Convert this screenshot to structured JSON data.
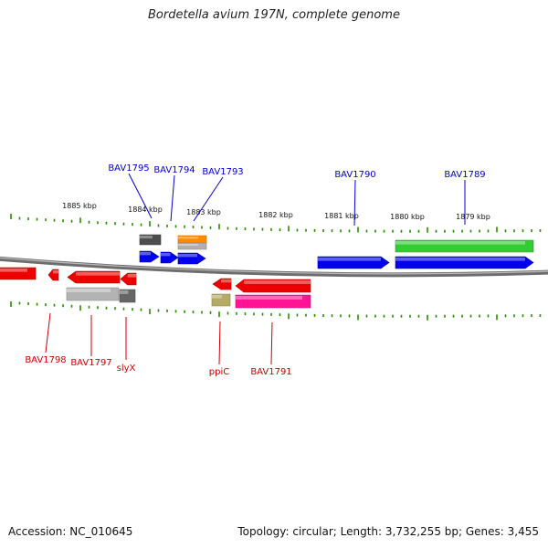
{
  "title": "Bordetella avium 197N, complete genome",
  "footer": {
    "accession": "Accession: NC_010645",
    "summary": "Topology: circular; Length: 3,732,255 bp; Genes: 3,455"
  },
  "scale_labels": [
    "1885 kbp",
    "1884 kbp",
    "1883 kbp",
    "1882 kbp",
    "1881 kbp",
    "1880 kbp",
    "1879 kbp"
  ],
  "colors": {
    "plus_label": "#0000cc",
    "minus_label": "#cc0000",
    "tick": "#2e8b00",
    "backbone": "#808080"
  },
  "features": [
    {
      "color": "#4d4d4d"
    },
    {
      "color": "#0000ee"
    },
    {
      "color": "#0000ee"
    },
    {
      "color": "#0000ee"
    },
    {
      "color": "#ff8c00"
    },
    {
      "color": "#b0b0b0"
    },
    {
      "color": "#0000ee"
    },
    {
      "color": "#0000ee"
    },
    {
      "color": "#33cc33"
    },
    {
      "color": "#ee0000"
    },
    {
      "color": "#ee0000"
    },
    {
      "color": "#ee0000"
    },
    {
      "color": "#ee0000"
    },
    {
      "color": "#b3b3b3"
    },
    {
      "color": "#666666"
    },
    {
      "color": "#ee0000"
    },
    {
      "color": "#ee0000"
    },
    {
      "color": "#b5aa66"
    },
    {
      "color": "#ff1493"
    }
  ],
  "gene_labels": [
    {
      "text": "BAV1795",
      "strand": "plus"
    },
    {
      "text": "BAV1794",
      "strand": "plus"
    },
    {
      "text": "BAV1793",
      "strand": "plus"
    },
    {
      "text": "BAV1790",
      "strand": "plus"
    },
    {
      "text": "BAV1789",
      "strand": "plus"
    },
    {
      "text": "BAV1798",
      "strand": "minus"
    },
    {
      "text": "BAV1797",
      "strand": "minus"
    },
    {
      "text": "slyX",
      "strand": "minus"
    },
    {
      "text": "ppiC",
      "strand": "minus"
    },
    {
      "text": "BAV1791",
      "strand": "minus"
    }
  ]
}
